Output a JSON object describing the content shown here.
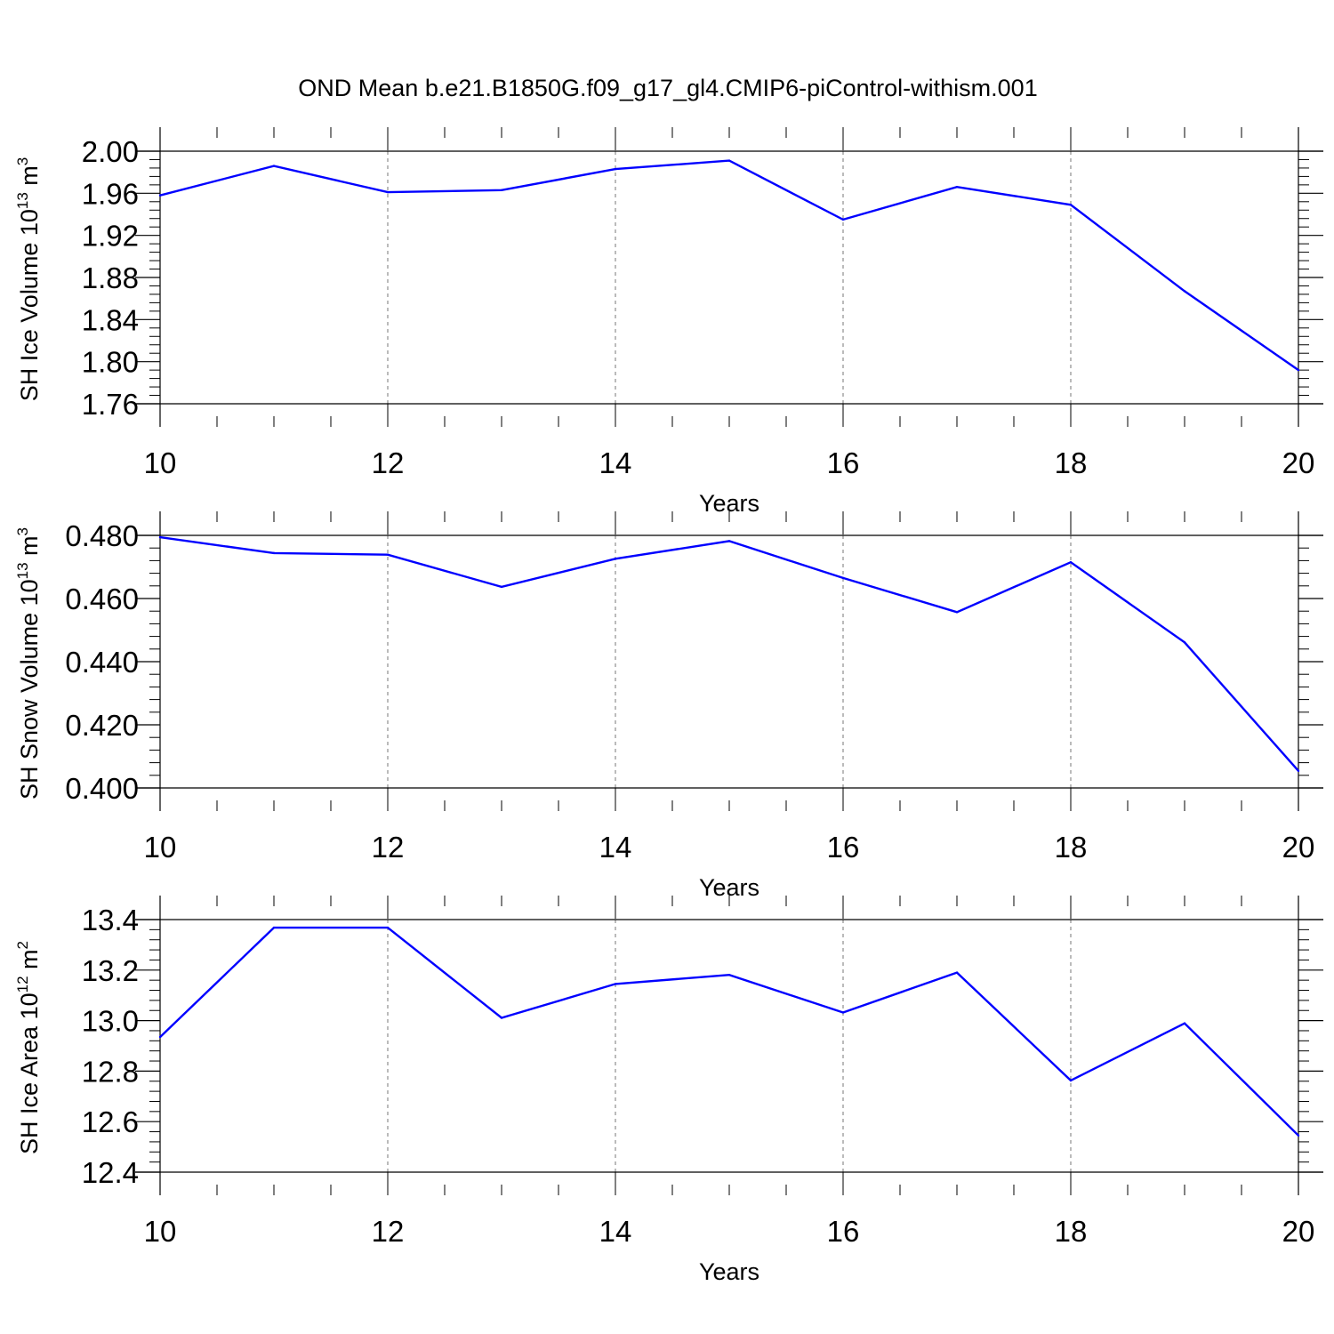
{
  "figure": {
    "title": "OND Mean b.e21.B1850G.f09_g17_gl4.CMIP6-piControl-withism.001",
    "line_color": "#0000ff"
  },
  "chart_data": [
    {
      "type": "line",
      "ylabel": "SH Ice Volume 10",
      "ylabel_exp": "13",
      "ylabel_unit": " m",
      "ylabel_unit_exp": "3",
      "xlabel": "Years",
      "xlim": [
        10,
        20
      ],
      "ylim": [
        1.76,
        2.0
      ],
      "x_ticks": [
        "10",
        "12",
        "14",
        "16",
        "18",
        "20"
      ],
      "y_ticks": [
        "1.76",
        "1.80",
        "1.84",
        "1.88",
        "1.92",
        "1.96",
        "2.00"
      ],
      "grid": "vertical dashed at major x ticks",
      "series": [
        {
          "x": [
            10,
            11,
            12,
            13,
            14,
            15,
            16,
            17,
            18,
            19,
            20
          ],
          "values": [
            1.958,
            1.986,
            1.961,
            1.963,
            1.983,
            1.991,
            1.935,
            1.966,
            1.949,
            1.867,
            1.792
          ]
        }
      ]
    },
    {
      "type": "line",
      "ylabel": "SH Snow Volume 10",
      "ylabel_exp": "13",
      "ylabel_unit": " m",
      "ylabel_unit_exp": "3",
      "xlabel": "Years",
      "xlim": [
        10,
        20
      ],
      "ylim": [
        0.4,
        0.48
      ],
      "x_ticks": [
        "10",
        "12",
        "14",
        "16",
        "18",
        "20"
      ],
      "y_ticks": [
        "0.400",
        "0.420",
        "0.440",
        "0.460",
        "0.480"
      ],
      "grid": "vertical dashed at major x ticks",
      "series": [
        {
          "x": [
            10,
            11,
            12,
            13,
            14,
            15,
            16,
            17,
            18,
            19,
            20
          ],
          "values": [
            0.4794,
            0.4744,
            0.4739,
            0.4637,
            0.4726,
            0.4782,
            0.4665,
            0.4557,
            0.4715,
            0.4461,
            0.4054
          ]
        }
      ]
    },
    {
      "type": "line",
      "ylabel": "SH Ice Area 10",
      "ylabel_exp": "12",
      "ylabel_unit": " m",
      "ylabel_unit_exp": "2",
      "xlabel": "Years",
      "xlim": [
        10,
        20
      ],
      "ylim": [
        12.4,
        13.4
      ],
      "x_ticks": [
        "10",
        "12",
        "14",
        "16",
        "18",
        "20"
      ],
      "y_ticks": [
        "12.4",
        "12.6",
        "12.8",
        "13.0",
        "13.2",
        "13.4"
      ],
      "grid": "vertical dashed at major x ticks",
      "series": [
        {
          "x": [
            10,
            11,
            12,
            13,
            14,
            15,
            16,
            17,
            18,
            19,
            20
          ],
          "values": [
            12.935,
            13.368,
            13.368,
            13.011,
            13.145,
            13.181,
            13.032,
            13.19,
            12.763,
            12.989,
            12.545
          ]
        }
      ]
    }
  ]
}
